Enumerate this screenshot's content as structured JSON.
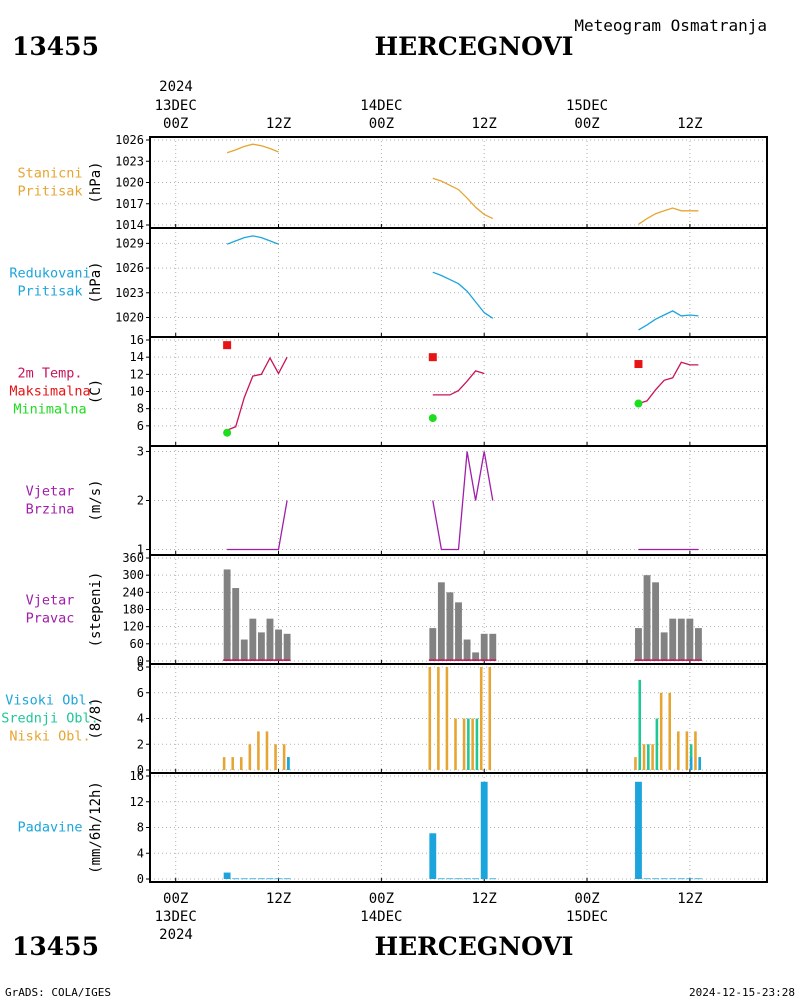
{
  "header": {
    "station_id": "13455",
    "station_name": "HERCEGNOVI",
    "title": "Meteogram Osmatranja"
  },
  "footer": {
    "station_id": "13455",
    "station_name": "HERCEGNOVI",
    "credit": "GrADS: COLA/IGES",
    "timestamp": "2024-12-15-23:28"
  },
  "time_axis": {
    "year": "2024",
    "ticks": [
      {
        "t": 0,
        "hour": "00Z",
        "date": "13DEC"
      },
      {
        "t": 12,
        "hour": "12Z",
        "date": ""
      },
      {
        "t": 24,
        "hour": "00Z",
        "date": "14DEC"
      },
      {
        "t": 36,
        "hour": "12Z",
        "date": ""
      },
      {
        "t": 48,
        "hour": "00Z",
        "date": "15DEC"
      },
      {
        "t": 60,
        "hour": "12Z",
        "date": ""
      }
    ]
  },
  "colors": {
    "orange": "#e6a532",
    "blue": "#1ca5dc",
    "red_line": "#c8145a",
    "red_square": "#e61414",
    "green": "#1edc1e",
    "purple": "#a01eaa",
    "gray": "#828282",
    "teal": "#1ec896"
  },
  "chart_data": [
    {
      "type": "line",
      "panel": "stanicni_pritisak",
      "labels": [
        "Stanicni",
        "Pritisak"
      ],
      "label_colors": [
        "orange",
        "orange"
      ],
      "ylabel": "(hPa)",
      "ylim": [
        1014,
        1026
      ],
      "yticks": [
        1014,
        1017,
        1020,
        1023,
        1026
      ],
      "series": [
        {
          "color": "orange",
          "points": [
            [
              6,
              1024.2
            ],
            [
              7,
              1024.6
            ],
            [
              8,
              1025.1
            ],
            [
              9,
              1025.4
            ],
            [
              10,
              1025.2
            ],
            [
              11,
              1024.8
            ],
            [
              12,
              1024.3
            ]
          ]
        },
        {
          "color": "orange",
          "points": [
            [
              30,
              1020.6
            ],
            [
              31,
              1020.2
            ],
            [
              32,
              1019.6
            ],
            [
              33,
              1019.0
            ],
            [
              34,
              1017.8
            ],
            [
              35,
              1016.5
            ],
            [
              36,
              1015.5
            ],
            [
              37,
              1014.9
            ]
          ]
        },
        {
          "color": "orange",
          "points": [
            [
              54,
              1014.1
            ],
            [
              55,
              1014.9
            ],
            [
              56,
              1015.6
            ],
            [
              57,
              1016.0
            ],
            [
              58,
              1016.4
            ],
            [
              59,
              1016.0
            ],
            [
              60,
              1016.0
            ],
            [
              61,
              1016.0
            ]
          ]
        }
      ]
    },
    {
      "type": "line",
      "panel": "redukovani_pritisak",
      "labels": [
        "Redukovani",
        "Pritisak"
      ],
      "label_colors": [
        "blue",
        "blue"
      ],
      "ylabel": "(hPa)",
      "ylim": [
        1018,
        1030.5
      ],
      "yticks": [
        1020,
        1023,
        1026,
        1029
      ],
      "series": [
        {
          "color": "blue",
          "points": [
            [
              6,
              1028.9
            ],
            [
              7,
              1029.3
            ],
            [
              8,
              1029.7
            ],
            [
              9,
              1029.9
            ],
            [
              10,
              1029.7
            ],
            [
              11,
              1029.3
            ],
            [
              12,
              1028.9
            ]
          ]
        },
        {
          "color": "blue",
          "points": [
            [
              30,
              1025.5
            ],
            [
              31,
              1025.1
            ],
            [
              32,
              1024.6
            ],
            [
              33,
              1024.1
            ],
            [
              34,
              1023.2
            ],
            [
              35,
              1021.9
            ],
            [
              36,
              1020.6
            ],
            [
              37,
              1019.9
            ]
          ]
        },
        {
          "color": "blue",
          "points": [
            [
              54,
              1018.5
            ],
            [
              55,
              1019.1
            ],
            [
              56,
              1019.8
            ],
            [
              57,
              1020.3
            ],
            [
              58,
              1020.8
            ],
            [
              59,
              1020.2
            ],
            [
              60,
              1020.3
            ],
            [
              61,
              1020.2
            ]
          ]
        }
      ]
    },
    {
      "type": "line",
      "panel": "temperatura",
      "labels": [
        "2m Temp.",
        "Maksimalna",
        "Minimalna"
      ],
      "label_colors": [
        "red_line",
        "red_square",
        "green"
      ],
      "ylabel": "(C)",
      "ylim": [
        4,
        16
      ],
      "yticks": [
        6,
        8,
        10,
        12,
        14,
        16
      ],
      "series": [
        {
          "color": "red_line",
          "points": [
            [
              6,
              5.5
            ],
            [
              7,
              5.9
            ],
            [
              8,
              9.3
            ],
            [
              9,
              11.8
            ],
            [
              10,
              12.0
            ],
            [
              11,
              13.9
            ],
            [
              12,
              12.1
            ],
            [
              13,
              14.0
            ]
          ]
        },
        {
          "color": "red_line",
          "points": [
            [
              30,
              9.6
            ],
            [
              31,
              9.6
            ],
            [
              32,
              9.6
            ],
            [
              33,
              10.1
            ],
            [
              34,
              11.2
            ],
            [
              35,
              12.4
            ],
            [
              36,
              12.1
            ]
          ]
        },
        {
          "color": "red_line",
          "points": [
            [
              54,
              8.6
            ],
            [
              55,
              8.9
            ],
            [
              56,
              10.2
            ],
            [
              57,
              11.3
            ],
            [
              58,
              11.6
            ],
            [
              59,
              13.4
            ],
            [
              60,
              13.1
            ],
            [
              61,
              13.1
            ]
          ]
        }
      ],
      "max_markers": {
        "color": "red_square",
        "points": [
          [
            6,
            15.4
          ],
          [
            30,
            14.0
          ],
          [
            54,
            13.2
          ]
        ]
      },
      "min_markers": {
        "color": "green",
        "points": [
          [
            6,
            5.2
          ],
          [
            30,
            6.9
          ],
          [
            54,
            8.6
          ]
        ]
      }
    },
    {
      "type": "line",
      "panel": "vjetar_brzina",
      "labels": [
        "Vjetar",
        "Brzina"
      ],
      "label_colors": [
        "purple",
        "purple"
      ],
      "ylabel": "(m/s)",
      "ylim": [
        0.95,
        3.05
      ],
      "yticks": [
        1,
        2,
        3
      ],
      "series": [
        {
          "color": "purple",
          "points": [
            [
              6,
              1
            ],
            [
              7,
              1
            ],
            [
              8,
              1
            ],
            [
              9,
              1
            ],
            [
              10,
              1
            ],
            [
              11,
              1
            ],
            [
              12,
              1
            ],
            [
              13,
              2
            ]
          ]
        },
        {
          "color": "purple",
          "points": [
            [
              30,
              2
            ],
            [
              31,
              1
            ],
            [
              32,
              1
            ],
            [
              33,
              1
            ],
            [
              34,
              3
            ],
            [
              35,
              2
            ],
            [
              36,
              3
            ],
            [
              37,
              2
            ]
          ]
        },
        {
          "color": "purple",
          "points": [
            [
              54,
              1
            ],
            [
              55,
              1
            ],
            [
              56,
              1
            ],
            [
              57,
              1
            ],
            [
              58,
              1
            ],
            [
              59,
              1
            ],
            [
              60,
              1
            ],
            [
              61,
              1
            ]
          ]
        }
      ]
    },
    {
      "type": "bar",
      "panel": "vjetar_pravac",
      "labels": [
        "Vjetar",
        "Pravac"
      ],
      "label_colors": [
        "purple",
        "purple"
      ],
      "ylabel": "(stepeni)",
      "ylim": [
        0,
        360
      ],
      "yticks": [
        0,
        60,
        120,
        180,
        240,
        300,
        360
      ],
      "bar_width_hours": 0.8,
      "series": [
        {
          "color": "gray",
          "points": [
            [
              6,
              320
            ],
            [
              7,
              255
            ],
            [
              8,
              75
            ],
            [
              9,
              148
            ],
            [
              10,
              100
            ],
            [
              11,
              148
            ],
            [
              12,
              110
            ],
            [
              13,
              95
            ],
            [
              30,
              115
            ],
            [
              31,
              275
            ],
            [
              32,
              240
            ],
            [
              33,
              205
            ],
            [
              34,
              75
            ],
            [
              35,
              30
            ],
            [
              36,
              95
            ],
            [
              37,
              95
            ],
            [
              54,
              115
            ],
            [
              55,
              300
            ],
            [
              56,
              275
            ],
            [
              57,
              100
            ],
            [
              58,
              148
            ],
            [
              59,
              148
            ],
            [
              60,
              148
            ],
            [
              61,
              115
            ]
          ]
        }
      ],
      "baseline_segments": {
        "color": "red_line",
        "value": 3,
        "ranges": [
          [
            6,
            13.4
          ],
          [
            30,
            37.4
          ],
          [
            54,
            61.4
          ]
        ]
      }
    },
    {
      "type": "bar",
      "panel": "oblacnost",
      "labels": [
        "Visoki Obl.",
        "Srednji Obl.",
        "Niski Obl."
      ],
      "label_colors": [
        "blue",
        "teal",
        "orange"
      ],
      "ylabel": "(8/8)",
      "ylim": [
        0,
        8
      ],
      "yticks": [
        0,
        2,
        4,
        6,
        8
      ],
      "groups": [
        {
          "color": "teal",
          "offset": 0.15,
          "width": 0.3,
          "points": [
            [
              13,
              1
            ],
            [
              34,
              4
            ],
            [
              35,
              4
            ],
            [
              54,
              7
            ],
            [
              55,
              2
            ],
            [
              56,
              4
            ],
            [
              60,
              2
            ],
            [
              61,
              1
            ]
          ]
        },
        {
          "color": "orange",
          "offset": -0.35,
          "width": 0.3,
          "points": [
            [
              6,
              1
            ],
            [
              7,
              1
            ],
            [
              8,
              1
            ],
            [
              9,
              2
            ],
            [
              10,
              3
            ],
            [
              11,
              3
            ],
            [
              12,
              2
            ],
            [
              13,
              2
            ],
            [
              30,
              8
            ],
            [
              31,
              8
            ],
            [
              32,
              8
            ],
            [
              33,
              4
            ],
            [
              34,
              4
            ],
            [
              35,
              4
            ],
            [
              36,
              8
            ],
            [
              37,
              8
            ],
            [
              54,
              1
            ],
            [
              55,
              2
            ],
            [
              56,
              2
            ],
            [
              57,
              6
            ],
            [
              58,
              6
            ],
            [
              59,
              3
            ],
            [
              60,
              3
            ],
            [
              61,
              3
            ]
          ]
        },
        {
          "color": "blue",
          "offset": 0.15,
          "width": 0.3,
          "points": [
            [
              13,
              1
            ],
            [
              60,
              1
            ],
            [
              61,
              1
            ]
          ]
        }
      ]
    },
    {
      "type": "bar",
      "panel": "padavine",
      "labels": [
        "Padavine"
      ],
      "label_colors": [
        "blue"
      ],
      "ylabel": "(mm/6h/12h)",
      "ylim": [
        0,
        16
      ],
      "yticks": [
        0,
        4,
        8,
        12,
        16
      ],
      "bar_width_hours": 0.8,
      "series": [
        {
          "color": "blue",
          "points": [
            [
              6,
              1.0
            ],
            [
              7,
              0.1
            ],
            [
              8,
              0.1
            ],
            [
              9,
              0.1
            ],
            [
              10,
              0.1
            ],
            [
              11,
              0.1
            ],
            [
              12,
              0.1
            ],
            [
              13,
              0.1
            ],
            [
              30,
              7.1
            ],
            [
              31,
              0.1
            ],
            [
              32,
              0.1
            ],
            [
              33,
              0.1
            ],
            [
              34,
              0.1
            ],
            [
              35,
              0.1
            ],
            [
              36,
              15.1
            ],
            [
              37,
              0.1
            ],
            [
              54,
              15.1
            ],
            [
              55,
              0.1
            ],
            [
              56,
              0.1
            ],
            [
              57,
              0.1
            ],
            [
              58,
              0.1
            ],
            [
              59,
              0.1
            ],
            [
              60,
              0.1
            ],
            [
              61,
              0.1
            ]
          ]
        }
      ]
    }
  ]
}
